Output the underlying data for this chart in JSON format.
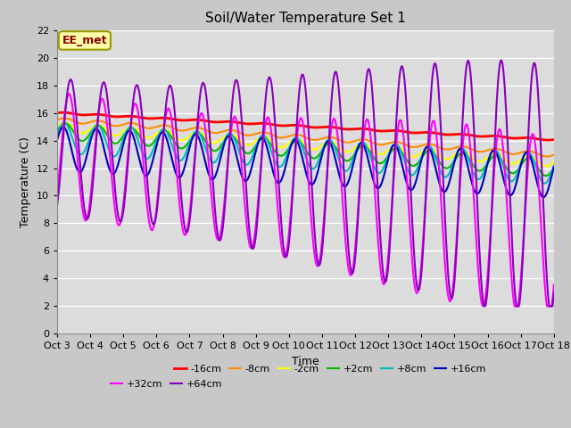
{
  "title": "Soil/Water Temperature Set 1",
  "xlabel": "Time",
  "ylabel": "Temperature (C)",
  "annotation": "EE_met",
  "ylim": [
    0,
    22
  ],
  "xlim": [
    0,
    15
  ],
  "x_tick_labels": [
    "Oct 3",
    "Oct 4",
    "Oct 5",
    "Oct 6",
    "Oct 7",
    "Oct 8",
    "Oct 9",
    "Oct 10",
    "Oct 11",
    "Oct 12",
    "Oct 13",
    "Oct 14",
    "Oct 15",
    "Oct 16",
    "Oct 17",
    "Oct 18"
  ],
  "x_tick_positions": [
    0,
    1,
    2,
    3,
    4,
    5,
    6,
    7,
    8,
    9,
    10,
    11,
    12,
    13,
    14,
    15
  ],
  "series_order": [
    "-16cm",
    "-8cm",
    "-2cm",
    "+2cm",
    "+8cm",
    "+16cm",
    "+32cm",
    "+64cm"
  ],
  "colors": {
    "-16cm": "#FF0000",
    "-8cm": "#FF8C00",
    "-2cm": "#FFFF00",
    "+2cm": "#00BB00",
    "+8cm": "#00BBBB",
    "+16cm": "#0000BB",
    "+32cm": "#FF00FF",
    "+64cm": "#8800BB"
  },
  "linewidths": {
    "-16cm": 2.0,
    "-8cm": 1.5,
    "-2cm": 1.5,
    "+2cm": 1.5,
    "+8cm": 1.5,
    "+16cm": 1.5,
    "+32cm": 1.5,
    "+64cm": 1.5
  },
  "plot_bg": "#DCDCDC",
  "fig_bg": "#C8C8C8",
  "grid_color": "#FFFFFF",
  "title_fontsize": 11,
  "tick_fontsize": 8,
  "label_fontsize": 9,
  "legend_fontsize": 8
}
